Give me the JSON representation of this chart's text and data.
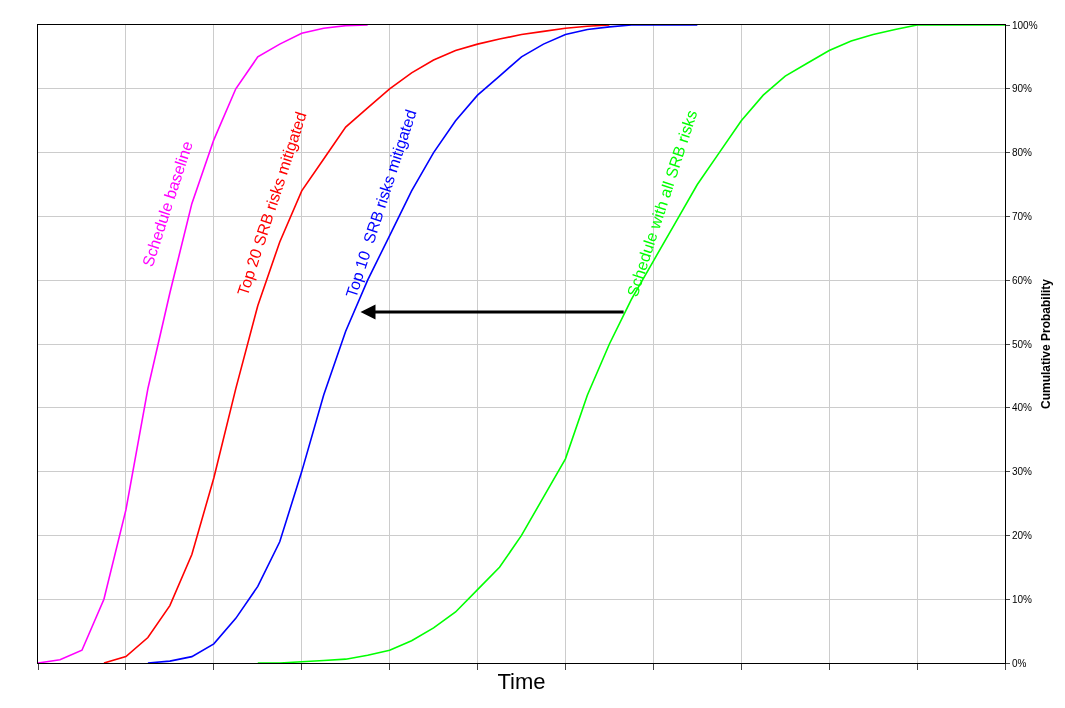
{
  "chart_data": {
    "type": "line",
    "xlabel": "Time",
    "ylabel": "Cumulative Probability",
    "categories": [
      null,
      null,
      null,
      null,
      null,
      null,
      null,
      null,
      null,
      null,
      null,
      null,
      null,
      null,
      null,
      null,
      null,
      null,
      null,
      null,
      null,
      null,
      null,
      null,
      null,
      null,
      null,
      null,
      null,
      null,
      null,
      null,
      null,
      null,
      null,
      null,
      null,
      null,
      null,
      null,
      null,
      null,
      null,
      null,
      null
    ],
    "series": [
      {
        "name": "Schedule baseline",
        "color": "#ff00ff",
        "values": [
          0,
          0.5,
          2,
          10,
          24,
          43,
          58,
          72,
          82,
          90,
          95,
          97,
          98.7,
          99.5,
          99.9,
          100,
          null,
          null,
          null,
          null,
          null,
          null,
          null,
          null,
          null,
          null,
          null,
          null,
          null,
          null,
          null,
          null,
          null,
          null,
          null,
          null,
          null,
          null,
          null,
          null,
          null,
          null,
          null,
          null,
          null
        ]
      },
      {
        "name": "Top 20 SRB risks mitigated",
        "color": "#ff0000",
        "values": [
          null,
          null,
          null,
          0,
          1,
          4,
          9,
          17,
          29,
          43,
          56,
          66,
          74,
          79,
          84,
          87,
          90,
          92.5,
          94.5,
          96,
          97,
          97.8,
          98.5,
          99,
          99.5,
          99.8,
          100,
          null,
          null,
          null,
          null,
          null,
          null,
          null,
          null,
          null,
          null,
          null,
          null,
          null,
          null,
          null,
          null,
          null,
          null
        ]
      },
      {
        "name": "Top 10  SRB risks mitigated",
        "color": "#0000ff",
        "values": [
          null,
          null,
          null,
          null,
          null,
          0,
          0.3,
          1,
          3,
          7,
          12,
          19,
          30,
          42,
          52,
          60,
          67,
          74,
          80,
          85,
          89,
          92,
          95,
          97,
          98.5,
          99.3,
          99.7,
          100,
          100,
          100,
          100,
          null,
          null,
          null,
          null,
          null,
          null,
          null,
          null,
          null,
          null,
          null,
          null,
          null,
          null
        ]
      },
      {
        "name": "Schedule with all SRB risks",
        "color": "#00ff00",
        "values": [
          null,
          null,
          null,
          null,
          null,
          null,
          null,
          null,
          null,
          null,
          0,
          0,
          0.2,
          0.4,
          0.6,
          1.2,
          2,
          3.5,
          5.5,
          8,
          11.5,
          15,
          20,
          26,
          32,
          42,
          50,
          57,
          63,
          69,
          75,
          80,
          85,
          89,
          92,
          94,
          96,
          97.5,
          98.5,
          99.3,
          100,
          100,
          100,
          100,
          100
        ]
      }
    ],
    "ylim": [
      0,
      100
    ],
    "yticks": [
      {
        "value": 0,
        "label": "0%"
      },
      {
        "value": 10,
        "label": "10%"
      },
      {
        "value": 20,
        "label": "20%"
      },
      {
        "value": 30,
        "label": "30%"
      },
      {
        "value": 40,
        "label": "40%"
      },
      {
        "value": 50,
        "label": "50%"
      },
      {
        "value": 60,
        "label": "60%"
      },
      {
        "value": 70,
        "label": "70%"
      },
      {
        "value": 80,
        "label": "80%"
      },
      {
        "value": 90,
        "label": "90%"
      },
      {
        "value": 100,
        "label": "100%"
      }
    ],
    "tick_labels": "y",
    "grid": true,
    "legend": false,
    "marker": "none",
    "line_style": "solid"
  }
}
